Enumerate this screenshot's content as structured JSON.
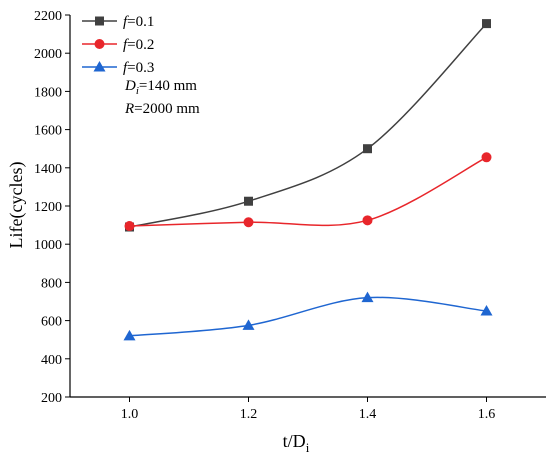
{
  "chart_data": {
    "type": "line",
    "title": "",
    "xlabel": "t/D",
    "xlabel_sub": "i",
    "ylabel": "Life(cycles)",
    "x": [
      1.0,
      1.2,
      1.4,
      1.6
    ],
    "x_tick_labels": [
      "1.0",
      "1.2",
      "1.4",
      "1.6"
    ],
    "xlim": [
      0.9,
      1.7
    ],
    "ylim": [
      200,
      2200
    ],
    "y_ticks": [
      200,
      400,
      600,
      800,
      1000,
      1200,
      1400,
      1600,
      1800,
      2000,
      2200
    ],
    "y_tick_labels": [
      "200",
      "400",
      "600",
      "800",
      "1000",
      "1200",
      "1400",
      "1600",
      "1800",
      "2000",
      "2200"
    ],
    "grid": false,
    "legend_position": "top-left",
    "series": [
      {
        "name_italic": "f",
        "name_rest": "=0.1",
        "values": [
          1090,
          1225,
          1500,
          2155
        ],
        "color": "#404040",
        "marker": "square"
      },
      {
        "name_italic": "f",
        "name_rest": "=0.2",
        "values": [
          1095,
          1115,
          1125,
          1455
        ],
        "color": "#e8262b",
        "marker": "circle"
      },
      {
        "name_italic": "f",
        "name_rest": "=0.3",
        "values": [
          520,
          575,
          720,
          650
        ],
        "color": "#1f66d1",
        "marker": "triangle"
      }
    ],
    "annotations": [
      {
        "italic": "D",
        "sub": "i",
        "rest": "=140 mm"
      },
      {
        "italic": "R",
        "sub": "",
        "rest": "=2000 mm"
      }
    ]
  }
}
